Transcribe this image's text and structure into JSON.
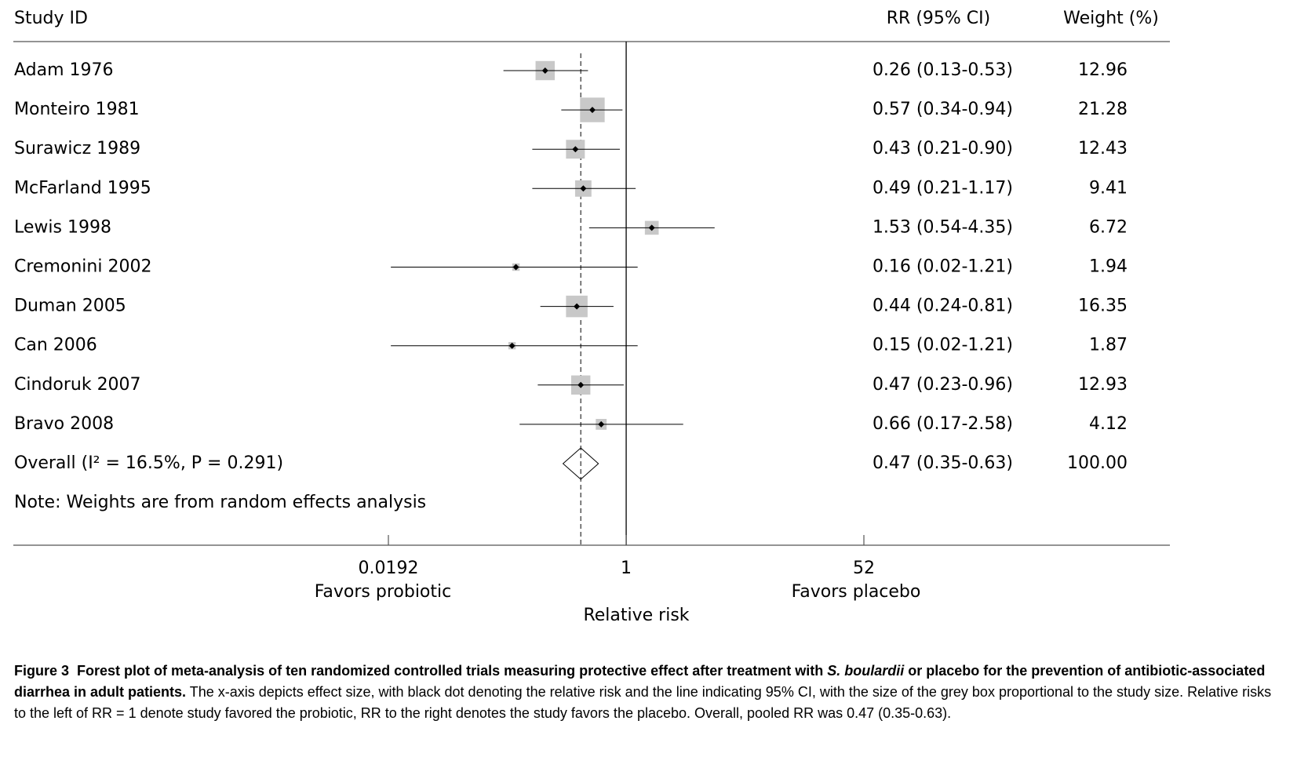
{
  "chart_data": {
    "type": "forest",
    "columns": {
      "study": "Study ID",
      "ci": "RR (95% CI)",
      "weight": "Weight (%)"
    },
    "categories": [
      "Adam 1976",
      "Monteiro 1981",
      "Surawicz 1989",
      "McFarland 1995",
      "Lewis 1998",
      "Cremonini 2002",
      "Duman 2005",
      "Can 2006",
      "Cindoruk 2007",
      "Bravo 2008"
    ],
    "rr": [
      0.26,
      0.57,
      0.43,
      0.49,
      1.53,
      0.16,
      0.44,
      0.15,
      0.47,
      0.66
    ],
    "lower": [
      0.13,
      0.34,
      0.21,
      0.21,
      0.54,
      0.02,
      0.24,
      0.02,
      0.23,
      0.17
    ],
    "upper": [
      0.53,
      0.94,
      0.9,
      1.17,
      4.35,
      1.21,
      0.81,
      1.21,
      0.96,
      2.58
    ],
    "ci_labels": [
      "0.26 (0.13-0.53)",
      "0.57 (0.34-0.94)",
      "0.43 (0.21-0.90)",
      "0.49 (0.21-1.17)",
      "1.53 (0.54-4.35)",
      "0.16 (0.02-1.21)",
      "0.44 (0.24-0.81)",
      "0.15 (0.02-1.21)",
      "0.47 (0.23-0.96)",
      "0.66 (0.17-2.58)"
    ],
    "weights": [
      12.96,
      21.28,
      12.43,
      9.41,
      6.72,
      1.94,
      16.35,
      1.87,
      12.93,
      4.12
    ],
    "weight_labels": [
      "12.96",
      "21.28",
      "12.43",
      "9.41",
      "6.72",
      "1.94",
      "16.35",
      "1.87",
      "12.93",
      "4.12"
    ],
    "overall": {
      "label": "Overall  (I² = 16.5%, P = 0.291)",
      "rr": 0.47,
      "lower": 0.35,
      "upper": 0.63,
      "ci_label": "0.47 (0.35-0.63)",
      "weight": 100,
      "weight_label": "100.00"
    },
    "note": "Note: Weights are from random effects analysis",
    "xscale": "log",
    "xlim": [
      0.0192,
      52
    ],
    "xticks": [
      0.0192,
      1,
      52
    ],
    "null_line": 1,
    "x_label": "Relative risk",
    "left_label": "Favors probiotic",
    "right_label": "Favors placebo",
    "box_color": "#c8c8c8",
    "line_color": "#000000"
  },
  "caption": {
    "figure": "Figure 3",
    "title_before": "Forest plot of meta-analysis of ten randomized controlled trials measuring protective effect after treatment with ",
    "title_italic": "S. boulardii",
    "title_after": " or placebo for the prevention of antibiotic-associated diarrhea in adult patients.",
    "text": "The x-axis depicts effect size, with black dot denoting the relative risk and the line indicating 95% CI, with the size of the grey box proportional to the study size. Relative risks to the left of RR = 1 denote study favored the probiotic, RR to the right denotes the study favors the placebo. Overall, pooled RR was 0.47 (0.35-0.63)."
  }
}
